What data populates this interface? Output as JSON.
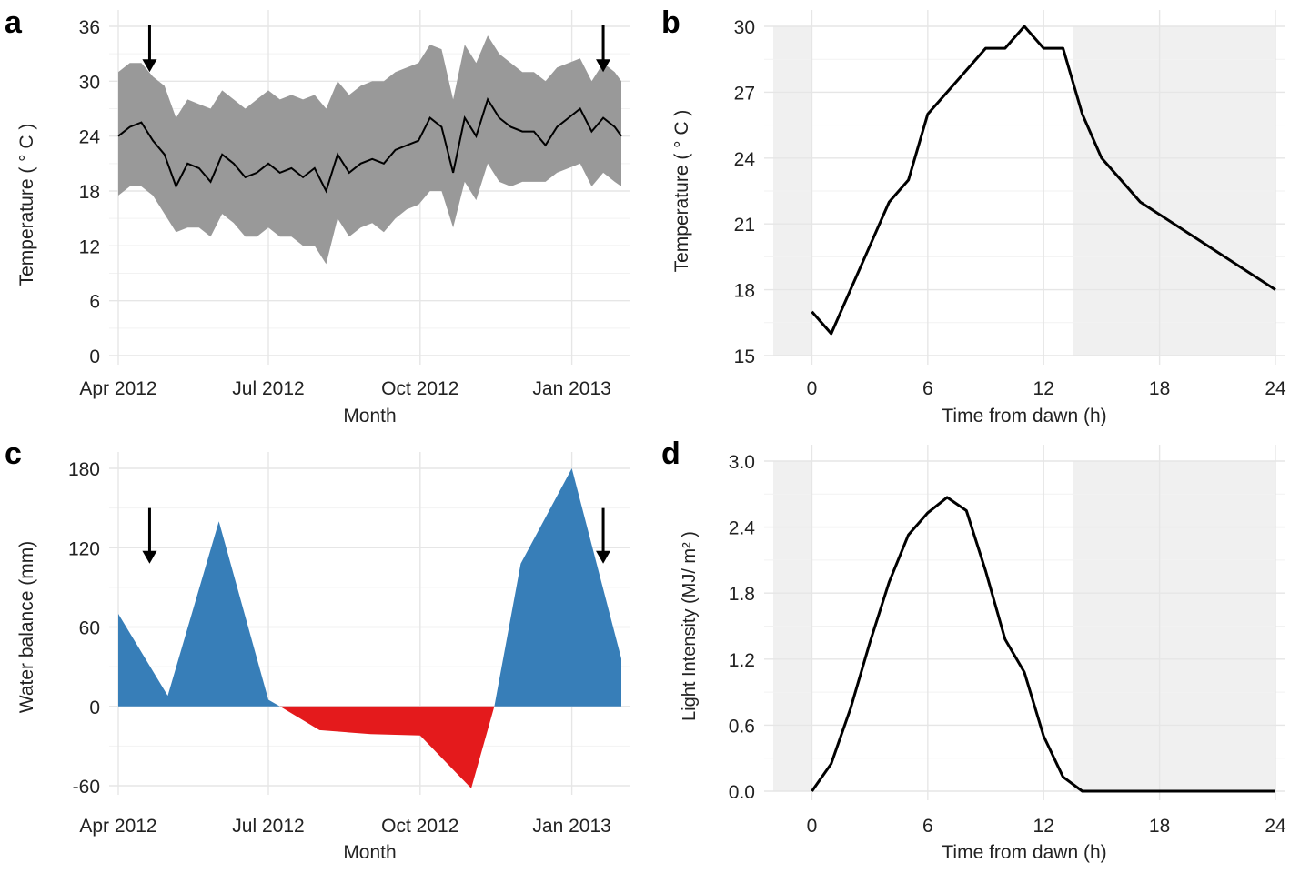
{
  "chart_data": [
    {
      "panel": "a",
      "type": "line",
      "xlabel": "Month",
      "ylabel": "Temperature ( ° C )",
      "x_type": "date",
      "xlim": [
        "2012-04-01",
        "2013-01-31"
      ],
      "ylim": [
        0,
        36
      ],
      "x_ticks": [
        {
          "date": "2012-04-01",
          "label": "Apr 2012"
        },
        {
          "date": "2012-07-01",
          "label": "Jul 2012"
        },
        {
          "date": "2012-10-01",
          "label": "Oct 2012"
        },
        {
          "date": "2013-01-01",
          "label": "Jan 2013"
        }
      ],
      "y_ticks": [
        0,
        6,
        12,
        18,
        24,
        30,
        36
      ],
      "grid": true,
      "line_color": "#000000",
      "band_color": "#999999",
      "series": [
        {
          "x": [
            "2012-04-01",
            "2012-04-08",
            "2012-04-15",
            "2012-04-22",
            "2012-04-29",
            "2012-05-06",
            "2012-05-13",
            "2012-05-20",
            "2012-05-27",
            "2012-06-03",
            "2012-06-10",
            "2012-06-17",
            "2012-06-24",
            "2012-07-01",
            "2012-07-08",
            "2012-07-15",
            "2012-07-22",
            "2012-07-29",
            "2012-08-05",
            "2012-08-12",
            "2012-08-19",
            "2012-08-26",
            "2012-09-02",
            "2012-09-09",
            "2012-09-16",
            "2012-09-23",
            "2012-09-30",
            "2012-10-07",
            "2012-10-14",
            "2012-10-21",
            "2012-10-28",
            "2012-11-04",
            "2012-11-11",
            "2012-11-18",
            "2012-11-25",
            "2012-12-02",
            "2012-12-09",
            "2012-12-16",
            "2012-12-23",
            "2012-12-30",
            "2013-01-06",
            "2013-01-13",
            "2013-01-20",
            "2013-01-27",
            "2013-01-31"
          ],
          "mean": [
            24,
            25,
            25.5,
            23.5,
            22,
            18.5,
            21,
            20.5,
            19,
            22,
            21,
            19.5,
            20,
            21,
            20,
            20.5,
            19.5,
            20.5,
            18,
            22,
            20,
            21,
            21.5,
            21,
            22.5,
            23,
            23.5,
            26,
            25,
            20,
            26,
            24,
            28,
            26,
            25,
            24.5,
            24.5,
            23,
            25,
            26,
            27,
            24.5,
            26,
            25,
            24
          ],
          "lower": [
            17.5,
            18.5,
            18.5,
            17.5,
            15.5,
            13.5,
            14,
            14,
            13,
            15.5,
            14.5,
            13,
            13,
            14,
            13,
            13,
            12,
            12,
            10,
            15,
            13,
            14,
            14.5,
            13.5,
            15,
            16,
            16.5,
            18,
            18,
            14,
            19,
            17,
            21,
            19,
            18.5,
            19,
            19,
            19,
            20,
            20.5,
            21,
            18.5,
            20,
            19,
            18.5
          ],
          "upper": [
            31,
            32,
            32,
            30.5,
            29.5,
            26,
            28,
            27.5,
            27,
            29,
            28,
            27,
            28,
            29,
            28,
            28.5,
            28,
            28.5,
            27,
            30,
            28.5,
            29.5,
            30,
            30,
            31,
            31.5,
            32,
            34,
            33.5,
            28,
            34,
            32,
            35,
            33,
            32,
            31,
            31,
            30,
            31.5,
            32,
            32.5,
            30,
            32,
            31,
            30
          ]
        }
      ],
      "annotations": [
        {
          "type": "arrow",
          "x": "2012-04-20"
        },
        {
          "type": "arrow",
          "x": "2013-01-20"
        }
      ]
    },
    {
      "panel": "b",
      "type": "line",
      "xlabel": "Time from dawn (h)",
      "ylabel": "Temperature ( ° C )",
      "xlim": [
        -2,
        24
      ],
      "ylim": [
        15,
        30
      ],
      "x_ticks": [
        0,
        6,
        12,
        18,
        24
      ],
      "y_ticks": [
        15,
        18,
        21,
        24,
        27,
        30
      ],
      "grid": true,
      "night_shading": [
        [
          -2,
          0
        ],
        [
          13.5,
          24
        ]
      ],
      "shade_color": "#f0f0f0",
      "line_color": "#000000",
      "series": [
        {
          "x": [
            0,
            1,
            2,
            3,
            4,
            5,
            6,
            7,
            8,
            9,
            10,
            11,
            12,
            13,
            14,
            15,
            16,
            17,
            24
          ],
          "y": [
            17,
            16,
            18,
            20,
            22,
            23,
            26,
            27,
            28,
            29,
            29,
            30,
            29,
            29,
            26,
            24,
            23,
            22,
            18
          ]
        }
      ]
    },
    {
      "panel": "c",
      "type": "area",
      "xlabel": "Month",
      "ylabel": "Water balance (mm)",
      "x_type": "date",
      "xlim": [
        "2012-04-01",
        "2013-01-31"
      ],
      "ylim": [
        -60,
        180
      ],
      "x_ticks": [
        {
          "date": "2012-04-01",
          "label": "Apr 2012"
        },
        {
          "date": "2012-07-01",
          "label": "Jul 2012"
        },
        {
          "date": "2012-10-01",
          "label": "Oct 2012"
        },
        {
          "date": "2013-01-01",
          "label": "Jan 2013"
        }
      ],
      "y_ticks": [
        -60,
        0,
        60,
        120,
        180
      ],
      "grid": true,
      "positive_color": "#377eb8",
      "negative_color": "#e41a1c",
      "series": [
        {
          "x": [
            "2012-04-01",
            "2012-05-01",
            "2012-06-01",
            "2012-07-01",
            "2012-07-08",
            "2012-08-01",
            "2012-09-01",
            "2012-10-01",
            "2012-11-01",
            "2012-11-15",
            "2012-12-01",
            "2013-01-01",
            "2013-01-31"
          ],
          "y": [
            70,
            8,
            140,
            5,
            0,
            -18,
            -21,
            -22,
            -62,
            0,
            108,
            180,
            36
          ]
        }
      ],
      "annotations": [
        {
          "type": "arrow",
          "x": "2012-04-20"
        },
        {
          "type": "arrow",
          "x": "2013-01-20"
        }
      ]
    },
    {
      "panel": "d",
      "type": "line",
      "xlabel": "Time from dawn (h)",
      "ylabel": "Light Intensity (MJ/ m² )",
      "xlim": [
        -2,
        24
      ],
      "ylim": [
        0,
        3
      ],
      "x_ticks": [
        0,
        6,
        12,
        18,
        24
      ],
      "y_ticks": [
        "0.0",
        "0.6",
        "1.2",
        "1.8",
        "2.4",
        "3.0"
      ],
      "grid": true,
      "night_shading": [
        [
          -2,
          0
        ],
        [
          13.5,
          24
        ]
      ],
      "shade_color": "#f0f0f0",
      "line_color": "#000000",
      "series": [
        {
          "x": [
            0,
            1,
            2,
            3,
            4,
            5,
            6,
            7,
            8,
            9,
            10,
            11,
            12,
            13,
            14,
            24
          ],
          "y": [
            0,
            0.25,
            0.75,
            1.35,
            1.9,
            2.33,
            2.53,
            2.67,
            2.55,
            2.0,
            1.38,
            1.08,
            0.5,
            0.13,
            0,
            0
          ]
        }
      ]
    }
  ]
}
